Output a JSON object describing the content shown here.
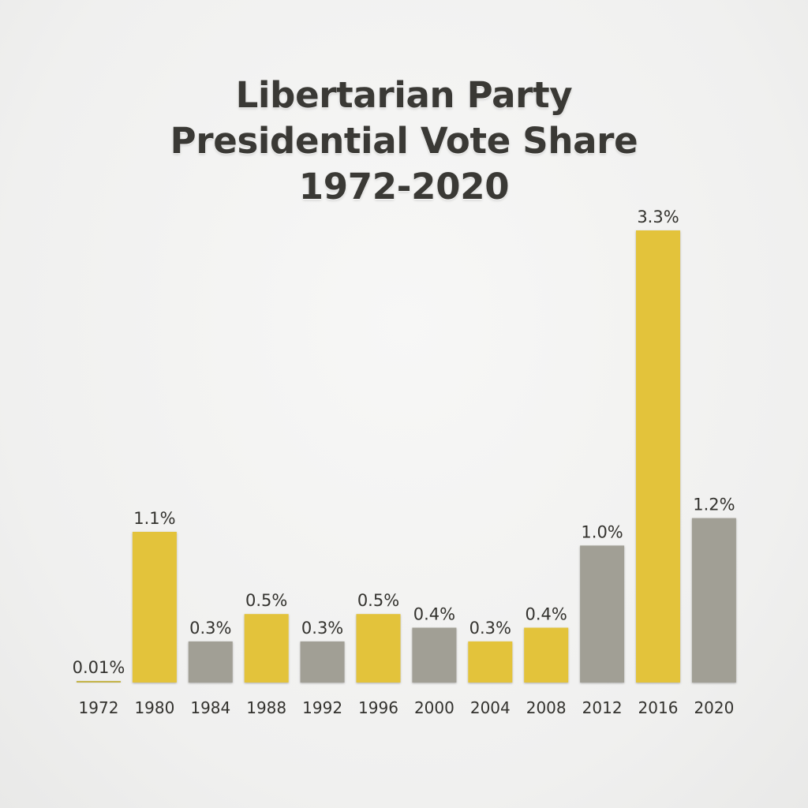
{
  "chart_data": {
    "type": "bar",
    "title_lines": [
      "Libertarian Party",
      "Presidential Vote Share",
      "1972-2020"
    ],
    "categories": [
      "1972",
      "1980",
      "1984",
      "1988",
      "1992",
      "1996",
      "2000",
      "2004",
      "2008",
      "2012",
      "2016",
      "2020"
    ],
    "values": [
      0.01,
      1.1,
      0.3,
      0.5,
      0.3,
      0.5,
      0.4,
      0.3,
      0.4,
      1.0,
      3.3,
      1.2
    ],
    "value_labels": [
      "0.01%",
      "1.1%",
      "0.3%",
      "0.5%",
      "0.3%",
      "0.5%",
      "0.4%",
      "0.3%",
      "0.4%",
      "1.0%",
      "3.3%",
      "1.2%"
    ],
    "bar_colors": [
      "#c4b44a",
      "#e3c33a",
      "#a19f95",
      "#e3c33a",
      "#a19f95",
      "#e3c33a",
      "#a19f95",
      "#e3c33a",
      "#e3c33a",
      "#a19f95",
      "#e3c33a",
      "#a19f95"
    ],
    "xlabel": "",
    "ylabel": "",
    "ylim": [
      0,
      3.3
    ],
    "grid": false,
    "legend": "none"
  }
}
